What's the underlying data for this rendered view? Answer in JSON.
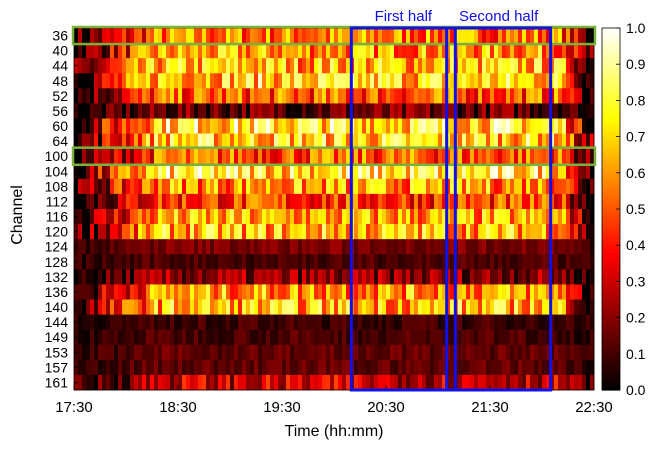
{
  "chart_data": {
    "type": "heatmap",
    "title": "",
    "xlabel": "Time (hh:mm)",
    "ylabel": "Channel",
    "x_tick_labels": [
      "17:30",
      "18:30",
      "19:30",
      "20:30",
      "21:30",
      "22:30"
    ],
    "x_range": [
      "17:30",
      "22:30"
    ],
    "channels": [
      "36",
      "40",
      "44",
      "48",
      "52",
      "56",
      "60",
      "64",
      "100",
      "104",
      "108",
      "112",
      "116",
      "120",
      "124",
      "128",
      "132",
      "136",
      "140",
      "144",
      "149",
      "153",
      "157",
      "161"
    ],
    "approx_mean_utilization": [
      0.55,
      0.6,
      0.65,
      0.7,
      0.5,
      0.15,
      0.75,
      0.7,
      0.5,
      0.75,
      0.6,
      0.45,
      0.6,
      0.65,
      0.12,
      0.05,
      0.2,
      0.6,
      0.65,
      0.03,
      0.05,
      0.08,
      0.08,
      0.3
    ],
    "colorbar": {
      "min": 0.0,
      "max": 1.0,
      "tick_labels": [
        "0.0",
        "0.1",
        "0.2",
        "0.3",
        "0.4",
        "0.5",
        "0.6",
        "0.7",
        "0.8",
        "0.9",
        "1.0"
      ],
      "colormap": "hot"
    },
    "annotations": {
      "first_half": {
        "label": "First half",
        "time_range": [
          "20:10",
          "21:10"
        ],
        "color": "#1010e8"
      },
      "second_half": {
        "label": "Second half",
        "time_range": [
          "21:05",
          "22:05"
        ],
        "color": "#1010e8"
      },
      "highlighted_rows": {
        "channels": [
          "36",
          "100"
        ],
        "color": "#7ab03c"
      }
    }
  }
}
